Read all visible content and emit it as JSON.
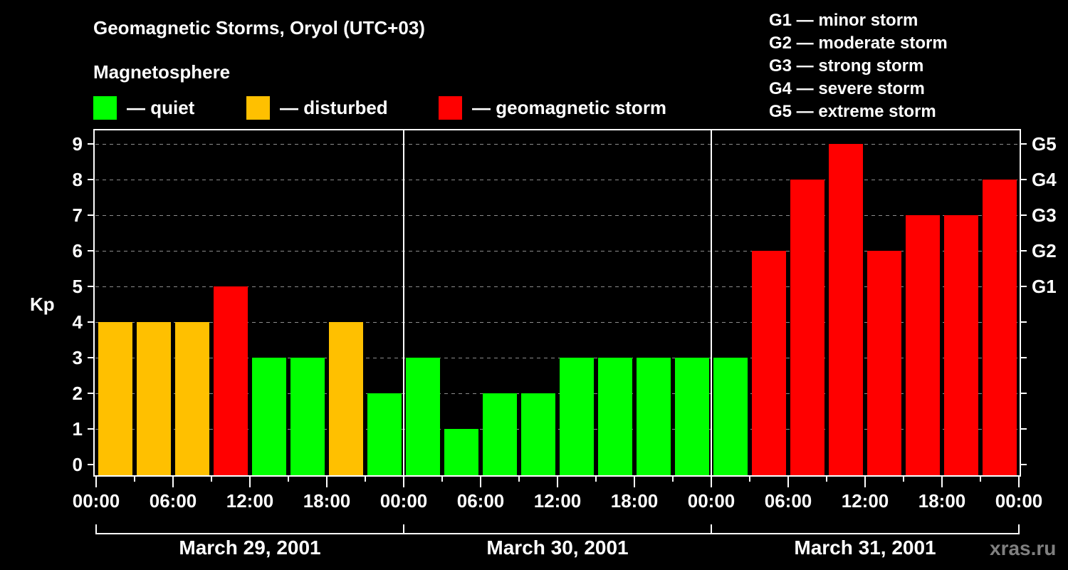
{
  "header": {
    "title": "Geomagnetic Storms, Oryol (UTC+03)",
    "subtitle": "Magnetosphere"
  },
  "legend": [
    {
      "label": "— quiet",
      "color": "#00ff00"
    },
    {
      "label": "— disturbed",
      "color": "#ffc000"
    },
    {
      "label": "— geomagnetic storm",
      "color": "#ff0000"
    }
  ],
  "g_scale": [
    "G1 — minor storm",
    "G2 — moderate storm",
    "G3 — strong storm",
    "G4 — severe storm",
    "G5 — extreme storm"
  ],
  "axes": {
    "ylabel": "Kp",
    "yticks": [
      "0",
      "1",
      "2",
      "3",
      "4",
      "5",
      "6",
      "7",
      "8",
      "9"
    ],
    "g_ticks": [
      "G1",
      "G2",
      "G3",
      "G4",
      "G5"
    ],
    "xticks": [
      "00:00",
      "06:00",
      "12:00",
      "18:00",
      "00:00",
      "06:00",
      "12:00",
      "18:00",
      "00:00",
      "06:00",
      "12:00",
      "18:00",
      "00:00"
    ],
    "days": [
      "March 29, 2001",
      "March 30, 2001",
      "March 31, 2001"
    ]
  },
  "watermark": "xras.ru",
  "colors": {
    "quiet": "#00ff00",
    "disturbed": "#ffc000",
    "storm": "#ff0000",
    "grid": "#8c8c8c",
    "axis": "#ffffff",
    "background": "#000000"
  },
  "chart_data": {
    "type": "bar",
    "title": "Geomagnetic Storms, Oryol (UTC+03)",
    "xlabel": "",
    "ylabel": "Kp",
    "ylim": [
      0,
      9
    ],
    "interval_hours": 3,
    "categories": [
      "2001-03-29 00:00",
      "2001-03-29 03:00",
      "2001-03-29 06:00",
      "2001-03-29 09:00",
      "2001-03-29 12:00",
      "2001-03-29 15:00",
      "2001-03-29 18:00",
      "2001-03-29 21:00",
      "2001-03-30 00:00",
      "2001-03-30 03:00",
      "2001-03-30 06:00",
      "2001-03-30 09:00",
      "2001-03-30 12:00",
      "2001-03-30 15:00",
      "2001-03-30 18:00",
      "2001-03-30 21:00",
      "2001-03-31 00:00",
      "2001-03-31 03:00",
      "2001-03-31 06:00",
      "2001-03-31 09:00",
      "2001-03-31 12:00",
      "2001-03-31 15:00",
      "2001-03-31 18:00",
      "2001-03-31 21:00"
    ],
    "values": [
      4,
      4,
      4,
      5,
      3,
      3,
      4,
      2,
      3,
      1,
      2,
      2,
      3,
      3,
      3,
      3,
      3,
      6,
      8,
      9,
      6,
      7,
      7,
      8
    ],
    "status": [
      "disturbed",
      "disturbed",
      "disturbed",
      "storm",
      "quiet",
      "quiet",
      "disturbed",
      "quiet",
      "quiet",
      "quiet",
      "quiet",
      "quiet",
      "quiet",
      "quiet",
      "quiet",
      "quiet",
      "quiet",
      "storm",
      "storm",
      "storm",
      "storm",
      "storm",
      "storm",
      "storm"
    ],
    "right_axis": {
      "5": "G1",
      "6": "G2",
      "7": "G3",
      "8": "G4",
      "9": "G5"
    },
    "grid": true,
    "legend_position": "top"
  }
}
